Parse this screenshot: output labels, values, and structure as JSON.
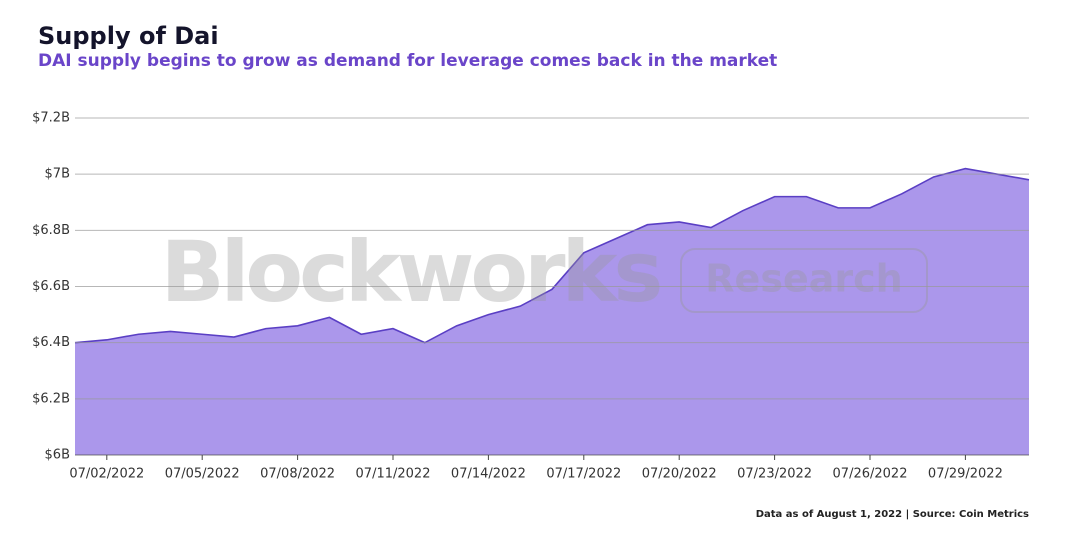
{
  "chart_data": {
    "type": "area",
    "title": "Supply of Dai",
    "subtitle": "DAI supply begins to grow as demand for leverage comes back in the market",
    "source": "Data as of August 1, 2022 | Source: Coin Metrics",
    "watermark": [
      "Blockworks",
      "Research"
    ],
    "categories": [
      null,
      "07/02/2022",
      null,
      null,
      "07/05/2022",
      null,
      null,
      "07/08/2022",
      null,
      null,
      "07/11/2022",
      null,
      null,
      "07/14/2022",
      null,
      null,
      "07/17/2022",
      null,
      null,
      "07/20/2022",
      null,
      null,
      "07/23/2022",
      null,
      null,
      "07/26/2022",
      null,
      null,
      "07/29/2022",
      null,
      null
    ],
    "values": [
      6400000000,
      6410000000,
      6430000000,
      6440000000,
      6430000000,
      6420000000,
      6450000000,
      6460000000,
      6490000000,
      6430000000,
      6450000000,
      6400000000,
      6460000000,
      6500000000,
      6530000000,
      6590000000,
      6720000000,
      6770000000,
      6820000000,
      6830000000,
      6810000000,
      6870000000,
      6920000000,
      6920000000,
      6880000000,
      6880000000,
      6930000000,
      6990000000,
      7020000000,
      7000000000,
      6980000000
    ],
    "color": "#ab97eb",
    "line_color": "#5a3fc4",
    "ylim": [
      6000000000,
      7200000000
    ],
    "yticks": [
      {
        "value": 6000000000,
        "label": "$6B"
      },
      {
        "value": 6200000000,
        "label": "$6.2B"
      },
      {
        "value": 6400000000,
        "label": "$6.4B"
      },
      {
        "value": 6600000000,
        "label": "$6.6B"
      },
      {
        "value": 6800000000,
        "label": "$6.8B"
      },
      {
        "value": 7000000000,
        "label": "$7B"
      },
      {
        "value": 7200000000,
        "label": "$7.2B"
      }
    ],
    "grid": true
  }
}
